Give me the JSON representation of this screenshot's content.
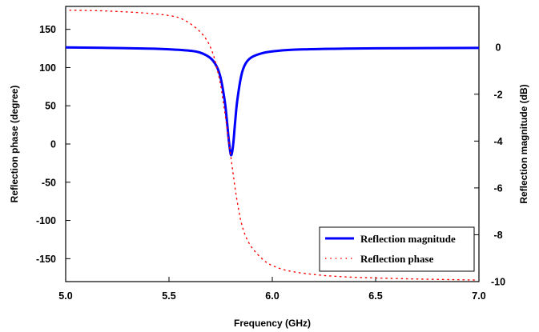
{
  "chart_data": {
    "type": "line",
    "xlabel": "Frequency (GHz)",
    "ylabel_left": "Reflection phase (degree)",
    "ylabel_right": "Reflection magnitude (dB)",
    "xlim": [
      5.0,
      7.0
    ],
    "ylim_left": [
      -180,
      180
    ],
    "ylim_right": [
      -10,
      1.75
    ],
    "x_ticks": [
      "5.0",
      "5.5",
      "6.0",
      "6.5",
      "7.0"
    ],
    "y_left_ticks": [
      "150",
      "100",
      "50",
      "0",
      "-50",
      "-100",
      "-150"
    ],
    "y_right_ticks": [
      "0",
      "-2",
      "-4",
      "-6",
      "-8",
      "-10"
    ],
    "grid": false,
    "legend_position": "bottom-right",
    "series": [
      {
        "name": "Reflection magnitude",
        "axis": "right",
        "color": "#0000ff",
        "style": "solid",
        "x": [
          5.0,
          5.2,
          5.4,
          5.5,
          5.6,
          5.65,
          5.7,
          5.73,
          5.75,
          5.77,
          5.78,
          5.79,
          5.8,
          5.81,
          5.82,
          5.83,
          5.85,
          5.87,
          5.9,
          5.95,
          6.0,
          6.1,
          6.3,
          6.5,
          7.0
        ],
        "y": [
          0.0,
          -0.02,
          -0.05,
          -0.08,
          -0.14,
          -0.22,
          -0.45,
          -0.8,
          -1.3,
          -2.3,
          -3.1,
          -4.0,
          -4.6,
          -4.2,
          -3.2,
          -2.3,
          -1.2,
          -0.7,
          -0.42,
          -0.25,
          -0.17,
          -0.1,
          -0.06,
          -0.04,
          -0.02
        ]
      },
      {
        "name": "Reflection phase",
        "axis": "left",
        "color": "#ff0000",
        "style": "dotted",
        "x": [
          5.02,
          5.2,
          5.4,
          5.5,
          5.55,
          5.6,
          5.65,
          5.68,
          5.7,
          5.72,
          5.74,
          5.75,
          5.76,
          5.77,
          5.78,
          5.79,
          5.8,
          5.81,
          5.82,
          5.83,
          5.84,
          5.85,
          5.87,
          5.9,
          5.95,
          6.0,
          6.1,
          6.3,
          6.6,
          6.99
        ],
        "y": [
          175,
          174,
          171,
          168,
          165,
          158,
          147,
          137,
          127,
          112,
          90,
          77,
          60,
          42,
          22,
          2,
          -18,
          -38,
          -58,
          -75,
          -90,
          -103,
          -120,
          -135,
          -150,
          -159,
          -167,
          -173,
          -176,
          -178
        ]
      }
    ]
  }
}
